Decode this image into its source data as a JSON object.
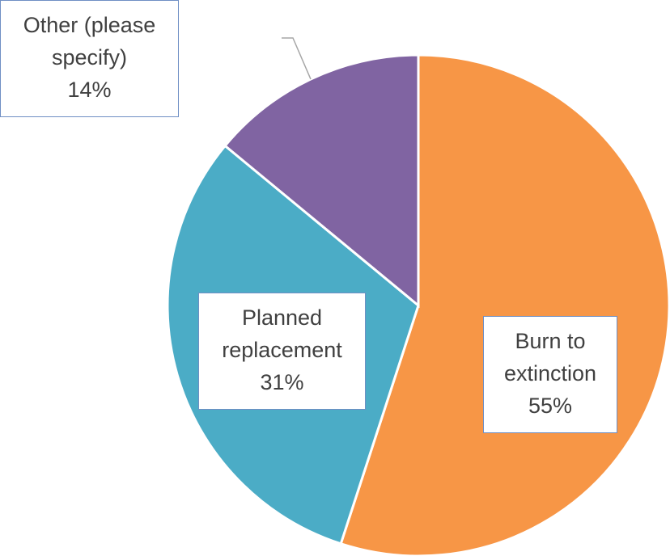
{
  "chart_data": {
    "type": "pie",
    "categories": [
      "Burn to extinction",
      "Planned replacement",
      "Other (please specify)"
    ],
    "values": [
      55,
      31,
      14
    ],
    "value_labels": [
      "55%",
      "31%",
      "14%"
    ],
    "colors": [
      "#f79646",
      "#4bacc6",
      "#8064a2"
    ]
  }
}
